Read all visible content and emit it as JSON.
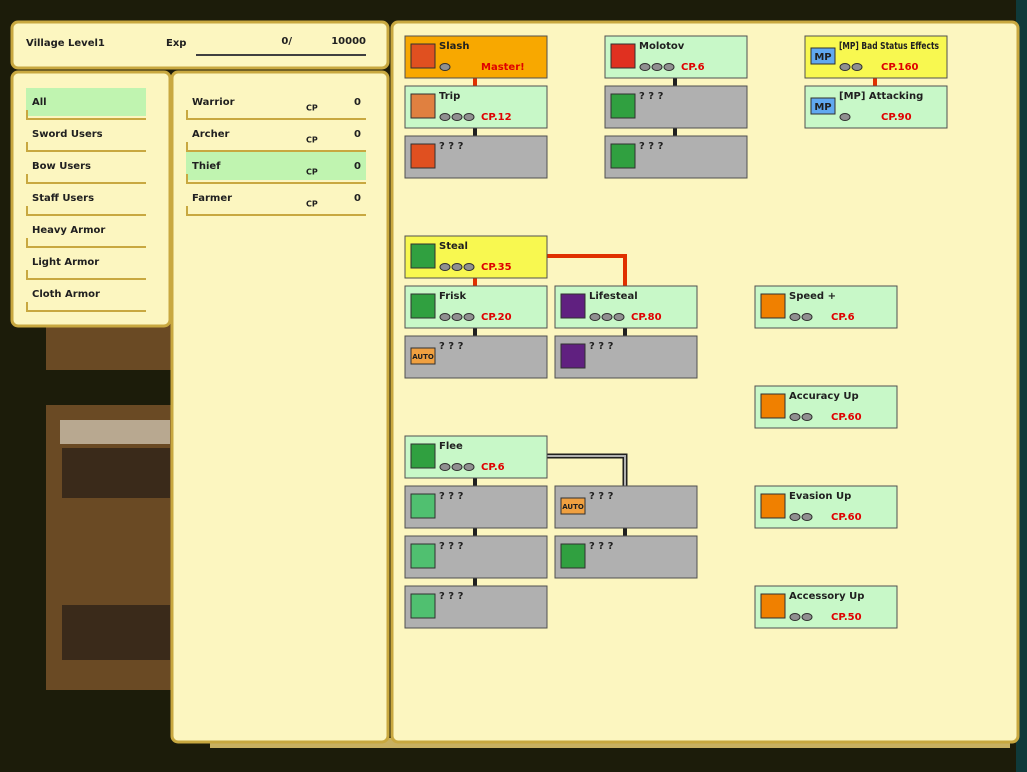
{
  "header": {
    "location": "Village Level1",
    "exp_label": "Exp",
    "exp_current": "0/",
    "exp_max": "10000"
  },
  "categories": [
    "All",
    "Sword Users",
    "Bow Users",
    "Staff Users",
    "Heavy Armor",
    "Light Armor",
    "Cloth Armor"
  ],
  "cp_label": "CP",
  "classes": [
    {
      "name": "Warrior",
      "cp": 0
    },
    {
      "name": "Archer",
      "cp": 0
    },
    {
      "name": "Thief",
      "cp": 0
    },
    {
      "name": "Farmer",
      "cp": 0
    }
  ],
  "skills": [
    {
      "name": "Slash",
      "cost": "Master!"
    },
    {
      "name": "Trip",
      "cost": "CP.12"
    },
    {
      "name": "? ? ?"
    },
    {
      "name": "Molotov",
      "cost": "CP.6"
    },
    {
      "name": "? ? ?"
    },
    {
      "name": "? ? ?"
    },
    {
      "name": "[MP] Bad Status Effects",
      "cost": "CP.160",
      "icon_text": "MP"
    },
    {
      "name": "[MP] Attacking",
      "cost": "CP.90",
      "icon_text": "MP"
    },
    {
      "name": "Steal",
      "cost": "CP.35"
    },
    {
      "name": "Frisk",
      "cost": "CP.20"
    },
    {
      "name": "? ? ?",
      "icon_text": "AUTO"
    },
    {
      "name": "Lifesteal",
      "cost": "CP.80"
    },
    {
      "name": "? ? ?"
    },
    {
      "name": "Speed +",
      "cost": "CP.6"
    },
    {
      "name": "Accuracy Up",
      "cost": "CP.60"
    },
    {
      "name": "Evasion Up",
      "cost": "CP.60"
    },
    {
      "name": "Accessory Up",
      "cost": "CP.50"
    },
    {
      "name": "Flee",
      "cost": "CP.6"
    },
    {
      "name": "? ? ?"
    },
    {
      "name": "? ? ?"
    },
    {
      "name": "? ? ?"
    },
    {
      "name": "? ? ?",
      "icon_text": "AUTO"
    },
    {
      "name": "? ? ?"
    }
  ]
}
